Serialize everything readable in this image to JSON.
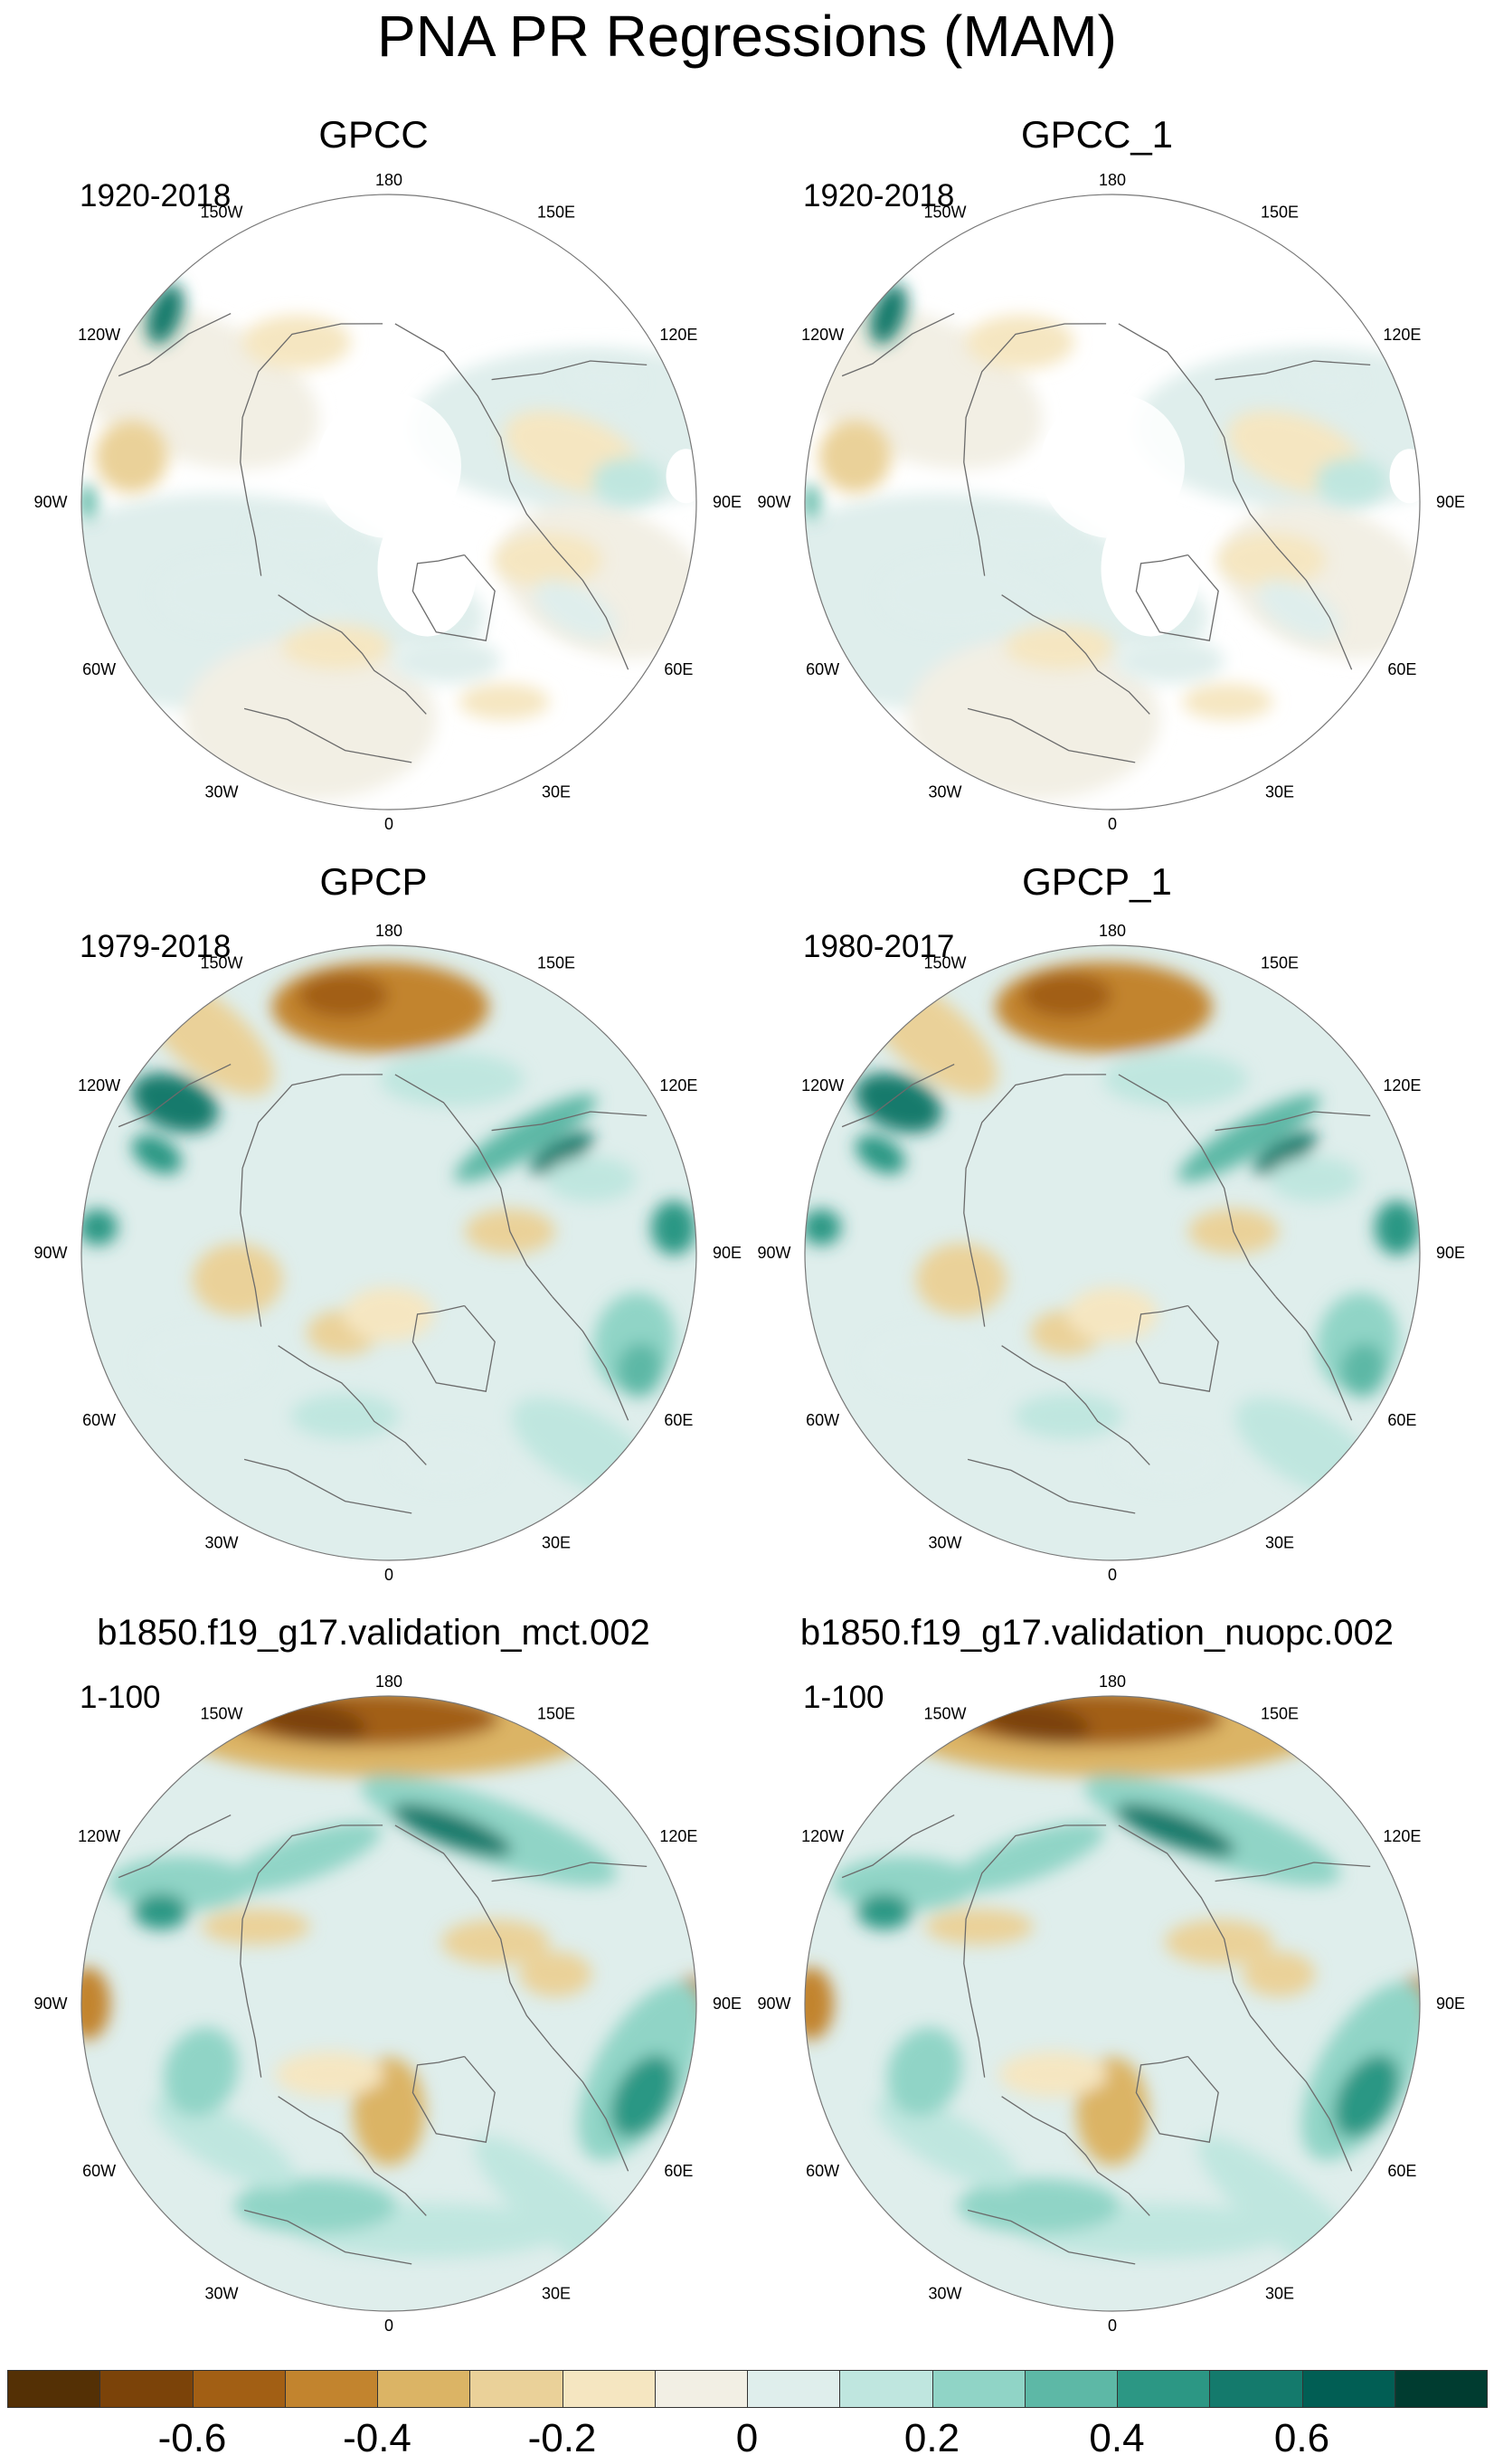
{
  "title": "PNA PR Regressions (MAM)",
  "panels": [
    {
      "title": "GPCC",
      "period": "1920-2018",
      "style": "gpcc"
    },
    {
      "title": "GPCC_1",
      "period": "1920-2018",
      "style": "gpcc"
    },
    {
      "title": "GPCP",
      "period": "1979-2018",
      "style": "gpcp"
    },
    {
      "title": "GPCP_1",
      "period": "1980-2017",
      "style": "gpcp"
    },
    {
      "title": "b1850.f19_g17.validation_mct.002",
      "period": "1-100",
      "style": "model"
    },
    {
      "title": "b1850.f19_g17.validation_nuopc.002",
      "period": "1-100",
      "style": "model"
    }
  ],
  "lon_labels": [
    "180",
    "150E",
    "120E",
    "90E",
    "60E",
    "30E",
    "0",
    "30W",
    "60W",
    "90W",
    "120W",
    "150W"
  ],
  "chart_data": {
    "type": "heatmap",
    "projection": "polar stereographic (north)",
    "variable": "PR regression onto PNA index",
    "colorbar": {
      "levels": [
        -0.7,
        -0.6,
        -0.5,
        -0.4,
        -0.3,
        -0.2,
        -0.1,
        0,
        0.1,
        0.2,
        0.3,
        0.4,
        0.5,
        0.6,
        0.7
      ],
      "colors": [
        "#543005",
        "#7b4309",
        "#a25f14",
        "#c2842e",
        "#dbb465",
        "#ead199",
        "#f5e6c1",
        "#f2efe4",
        "#dfeeec",
        "#bfe6df",
        "#90d4c6",
        "#5db8a6",
        "#2c9784",
        "#147a6c",
        "#015e54",
        "#003c30"
      ],
      "tick_labels": [
        "-0.6",
        "-0.4",
        "-0.2",
        "0",
        "0.2",
        "0.4",
        "0.6"
      ],
      "tick_values": [
        -0.6,
        -0.4,
        -0.2,
        0,
        0.2,
        0.4,
        0.6
      ]
    }
  }
}
